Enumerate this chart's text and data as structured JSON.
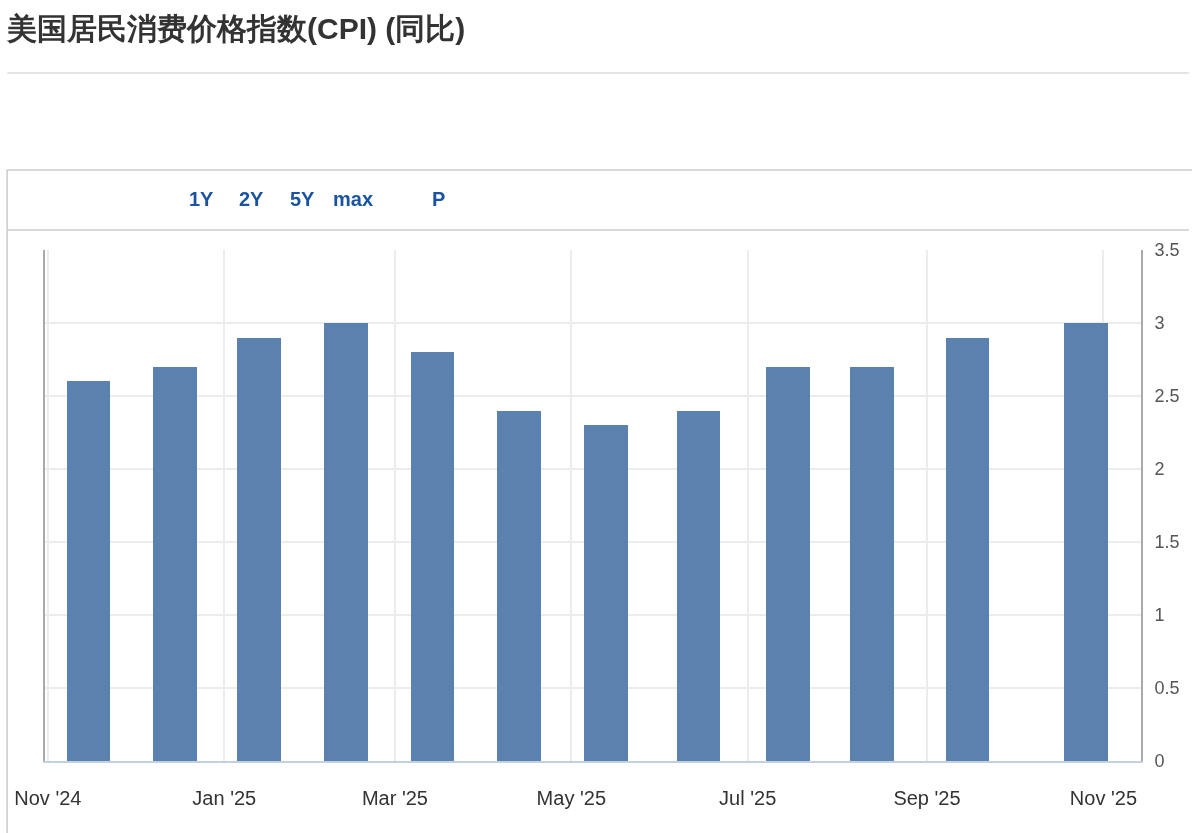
{
  "chart_data": {
    "type": "bar",
    "title": "美国居民消费价格指数(CPI) (同比)",
    "x": [
      "2024-11-15",
      "2024-12-15",
      "2025-01-13",
      "2025-02-12",
      "2025-03-14",
      "2025-04-13",
      "2025-05-13",
      "2025-06-14",
      "2025-07-15",
      "2025-08-13",
      "2025-09-15",
      "2025-10-26"
    ],
    "values": [
      2.6,
      2.7,
      2.9,
      3.0,
      2.8,
      2.4,
      2.3,
      2.4,
      2.7,
      2.7,
      2.9,
      3.0
    ],
    "color": "#5b82ae",
    "xlim": [
      "2024-10-31",
      "2025-11-14"
    ],
    "xticks": [
      {
        "value": "2024-11-01",
        "label": "Nov '24"
      },
      {
        "value": "2025-01-01",
        "label": "Jan '25"
      },
      {
        "value": "2025-03-01",
        "label": "Mar '25"
      },
      {
        "value": "2025-05-01",
        "label": "May '25"
      },
      {
        "value": "2025-07-01",
        "label": "Jul '25"
      },
      {
        "value": "2025-09-01",
        "label": "Sep '25"
      },
      {
        "value": "2025-11-01",
        "label": "Nov '25"
      }
    ],
    "ylim": [
      0,
      3.5
    ],
    "yticks": [
      0,
      0.5,
      1,
      1.5,
      2,
      2.5,
      3,
      3.5
    ],
    "grid": true,
    "annotations": [
      "1Y",
      "2Y",
      "5Y",
      "max",
      "P"
    ]
  }
}
